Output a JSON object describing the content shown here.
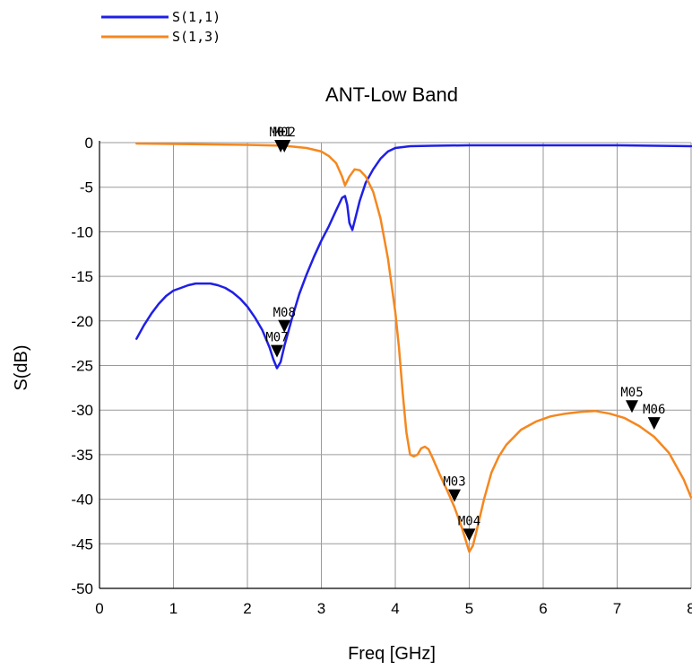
{
  "chart_data": {
    "type": "line",
    "title": "ANT-Low Band",
    "xlabel": "Freq [GHz]",
    "ylabel": "S(dB)",
    "xlim": [
      0,
      8
    ],
    "ylim": [
      -50,
      0
    ],
    "x_ticks": [
      0,
      1,
      2,
      3,
      4,
      5,
      6,
      7,
      8
    ],
    "y_ticks": [
      0,
      -5,
      -10,
      -15,
      -20,
      -25,
      -30,
      -35,
      -40,
      -45,
      -50
    ],
    "grid": true,
    "legend_position": "top-left",
    "series": [
      {
        "name": "S(1,1)",
        "color": "#1f1fe6",
        "points": [
          [
            0.5,
            -22
          ],
          [
            0.6,
            -20.5
          ],
          [
            0.7,
            -19.2
          ],
          [
            0.8,
            -18.1
          ],
          [
            0.9,
            -17.2
          ],
          [
            1.0,
            -16.6
          ],
          [
            1.1,
            -16.3
          ],
          [
            1.2,
            -16.0
          ],
          [
            1.3,
            -15.8
          ],
          [
            1.4,
            -15.8
          ],
          [
            1.5,
            -15.8
          ],
          [
            1.6,
            -16.0
          ],
          [
            1.7,
            -16.3
          ],
          [
            1.8,
            -16.8
          ],
          [
            1.9,
            -17.5
          ],
          [
            2.0,
            -18.4
          ],
          [
            2.1,
            -19.6
          ],
          [
            2.2,
            -21.0
          ],
          [
            2.3,
            -23.0
          ],
          [
            2.35,
            -24.3
          ],
          [
            2.4,
            -25.3
          ],
          [
            2.45,
            -24.6
          ],
          [
            2.5,
            -22.8
          ],
          [
            2.6,
            -19.8
          ],
          [
            2.7,
            -17.0
          ],
          [
            2.8,
            -14.8
          ],
          [
            2.9,
            -12.8
          ],
          [
            3.0,
            -11.0
          ],
          [
            3.1,
            -9.4
          ],
          [
            3.2,
            -7.6
          ],
          [
            3.28,
            -6.2
          ],
          [
            3.32,
            -6.0
          ],
          [
            3.35,
            -7.0
          ],
          [
            3.38,
            -9.0
          ],
          [
            3.42,
            -9.8
          ],
          [
            3.46,
            -8.5
          ],
          [
            3.52,
            -6.5
          ],
          [
            3.6,
            -4.5
          ],
          [
            3.7,
            -3.0
          ],
          [
            3.8,
            -1.8
          ],
          [
            3.9,
            -1.0
          ],
          [
            4.0,
            -0.6
          ],
          [
            4.2,
            -0.4
          ],
          [
            4.5,
            -0.35
          ],
          [
            5.0,
            -0.3
          ],
          [
            6.0,
            -0.3
          ],
          [
            7.0,
            -0.3
          ],
          [
            8.0,
            -0.4
          ]
        ]
      },
      {
        "name": "S(1,3)",
        "color": "#f5871f",
        "points": [
          [
            0.5,
            -0.1
          ],
          [
            1.0,
            -0.15
          ],
          [
            1.5,
            -0.2
          ],
          [
            2.0,
            -0.25
          ],
          [
            2.5,
            -0.35
          ],
          [
            2.8,
            -0.6
          ],
          [
            3.0,
            -1.0
          ],
          [
            3.1,
            -1.5
          ],
          [
            3.2,
            -2.3
          ],
          [
            3.28,
            -3.8
          ],
          [
            3.32,
            -4.8
          ],
          [
            3.38,
            -3.8
          ],
          [
            3.45,
            -3.0
          ],
          [
            3.52,
            -3.1
          ],
          [
            3.6,
            -3.8
          ],
          [
            3.7,
            -5.5
          ],
          [
            3.8,
            -8.5
          ],
          [
            3.9,
            -13.0
          ],
          [
            4.0,
            -19.0
          ],
          [
            4.05,
            -23.0
          ],
          [
            4.1,
            -28.0
          ],
          [
            4.15,
            -32.5
          ],
          [
            4.2,
            -35.0
          ],
          [
            4.25,
            -35.2
          ],
          [
            4.3,
            -35.0
          ],
          [
            4.35,
            -34.3
          ],
          [
            4.4,
            -34.1
          ],
          [
            4.45,
            -34.4
          ],
          [
            4.5,
            -35.3
          ],
          [
            4.6,
            -37.2
          ],
          [
            4.7,
            -39.0
          ],
          [
            4.8,
            -40.9
          ],
          [
            4.9,
            -43.2
          ],
          [
            5.0,
            -45.9
          ],
          [
            5.05,
            -45.2
          ],
          [
            5.1,
            -43.5
          ],
          [
            5.2,
            -40.0
          ],
          [
            5.3,
            -37.0
          ],
          [
            5.4,
            -35.2
          ],
          [
            5.5,
            -33.9
          ],
          [
            5.7,
            -32.2
          ],
          [
            5.9,
            -31.3
          ],
          [
            6.1,
            -30.7
          ],
          [
            6.3,
            -30.4
          ],
          [
            6.5,
            -30.2
          ],
          [
            6.7,
            -30.1
          ],
          [
            6.9,
            -30.4
          ],
          [
            7.1,
            -30.9
          ],
          [
            7.3,
            -31.8
          ],
          [
            7.5,
            -33.0
          ],
          [
            7.7,
            -34.8
          ],
          [
            7.9,
            -37.8
          ],
          [
            8.0,
            -39.8
          ]
        ]
      }
    ],
    "markers": [
      {
        "label": "M01",
        "x": 2.45,
        "y": -0.6
      },
      {
        "label": "M02",
        "x": 2.5,
        "y": -0.6
      },
      {
        "label": "M07",
        "x": 2.4,
        "y": -23.6
      },
      {
        "label": "M08",
        "x": 2.5,
        "y": -20.8
      },
      {
        "label": "M03",
        "x": 4.8,
        "y": -39.8
      },
      {
        "label": "M04",
        "x": 5.0,
        "y": -44.2
      },
      {
        "label": "M05",
        "x": 7.2,
        "y": -29.8
      },
      {
        "label": "M06",
        "x": 7.5,
        "y": -31.7
      }
    ]
  }
}
